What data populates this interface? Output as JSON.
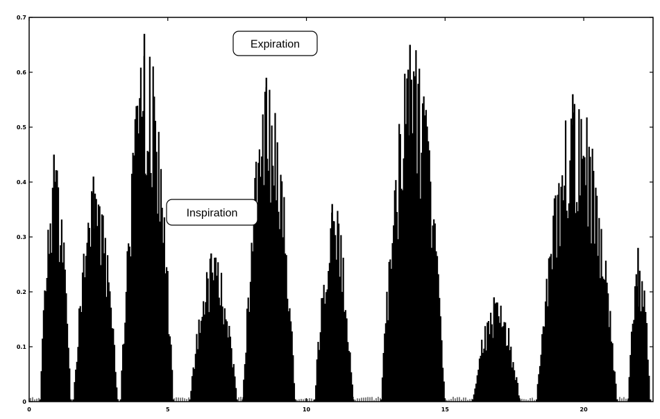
{
  "chart_data": {
    "type": "bar",
    "title": "",
    "xlabel": "",
    "ylabel": "",
    "xlim": [
      0,
      22.5
    ],
    "ylim": [
      0,
      0.7
    ],
    "grid": false,
    "legend": "none",
    "bar_color": "#000000",
    "x_ticks": [
      {
        "value": 0,
        "label": "0"
      },
      {
        "value": 5,
        "label": "5"
      },
      {
        "value": 10,
        "label": "10"
      },
      {
        "value": 15,
        "label": "15"
      },
      {
        "value": 20,
        "label": "20"
      }
    ],
    "y_ticks": [
      {
        "value": 0,
        "label": "0"
      },
      {
        "value": 0.1,
        "label": "0.1"
      },
      {
        "value": 0.2,
        "label": "0.2"
      },
      {
        "value": 0.3,
        "label": "0.3"
      },
      {
        "value": 0.4,
        "label": "0.4"
      },
      {
        "value": 0.5,
        "label": "0.5"
      },
      {
        "value": 0.6,
        "label": "0.6"
      },
      {
        "value": 0.7,
        "label": "0.7"
      }
    ],
    "bursts": [
      {
        "start": 0.4,
        "end": 1.5,
        "peak": 0.45
      },
      {
        "start": 1.6,
        "end": 3.2,
        "peak": 0.41
      },
      {
        "start": 3.3,
        "end": 5.2,
        "peak": 0.67
      },
      {
        "start": 5.8,
        "end": 7.5,
        "peak": 0.27
      },
      {
        "start": 7.7,
        "end": 9.6,
        "peak": 0.59
      },
      {
        "start": 10.3,
        "end": 11.7,
        "peak": 0.36
      },
      {
        "start": 12.7,
        "end": 15.0,
        "peak": 0.65
      },
      {
        "start": 16.0,
        "end": 17.7,
        "peak": 0.19
      },
      {
        "start": 18.3,
        "end": 21.2,
        "peak": 0.56
      },
      {
        "start": 21.6,
        "end": 22.4,
        "peak": 0.28
      }
    ],
    "annotations": [
      {
        "text": "Expiration",
        "x": 4.7,
        "y": 0.647
      },
      {
        "text": "Inspiration",
        "x": 7.1,
        "y": 0.345
      }
    ]
  }
}
